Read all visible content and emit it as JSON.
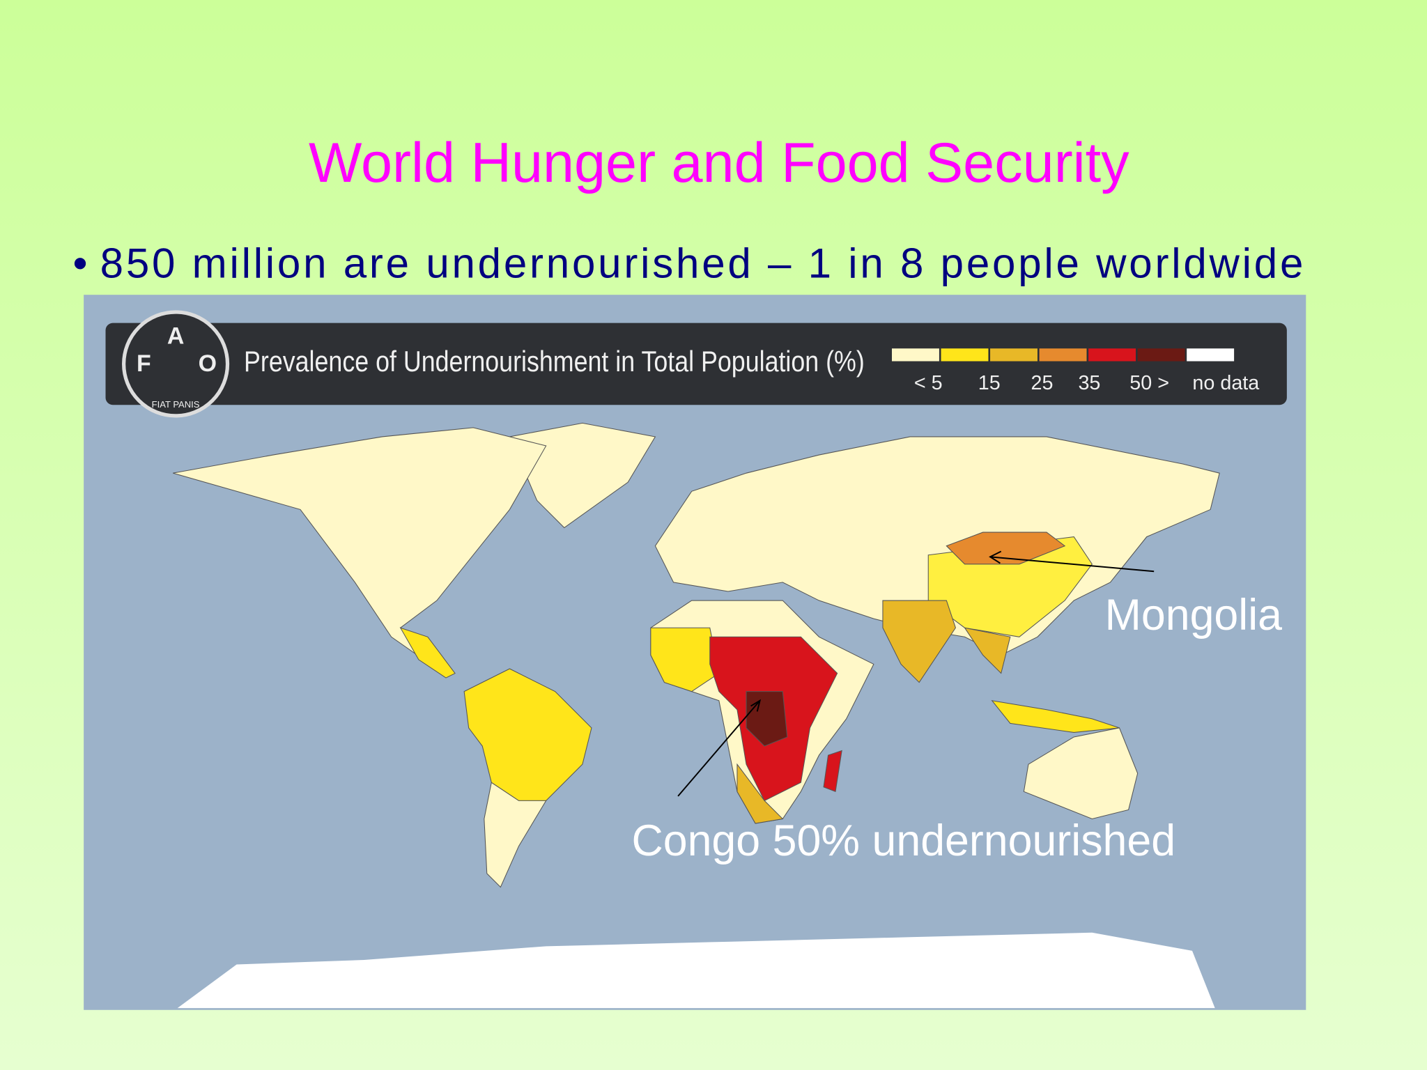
{
  "title": "World Hunger and Food Security",
  "bullet": {
    "marker": "•",
    "text": "850 million are undernourished – 1 in 8 people worldwide"
  },
  "map": {
    "logo": {
      "letters": [
        "F",
        "A",
        "O"
      ],
      "motto": "FIAT PANIS"
    },
    "legend": {
      "title": "Prevalence of Undernourishment in Total Population (%)",
      "colors": [
        "#fff8c8",
        "#ffe51a",
        "#e8b827",
        "#e68a2e",
        "#d8141c",
        "#6b1a14",
        "#ffffff"
      ],
      "labels": [
        "< 5",
        "15",
        "25",
        "35",
        "50 >",
        "no data"
      ]
    },
    "annotations": [
      "Mongolia",
      "Congo 50% undernourished"
    ]
  }
}
